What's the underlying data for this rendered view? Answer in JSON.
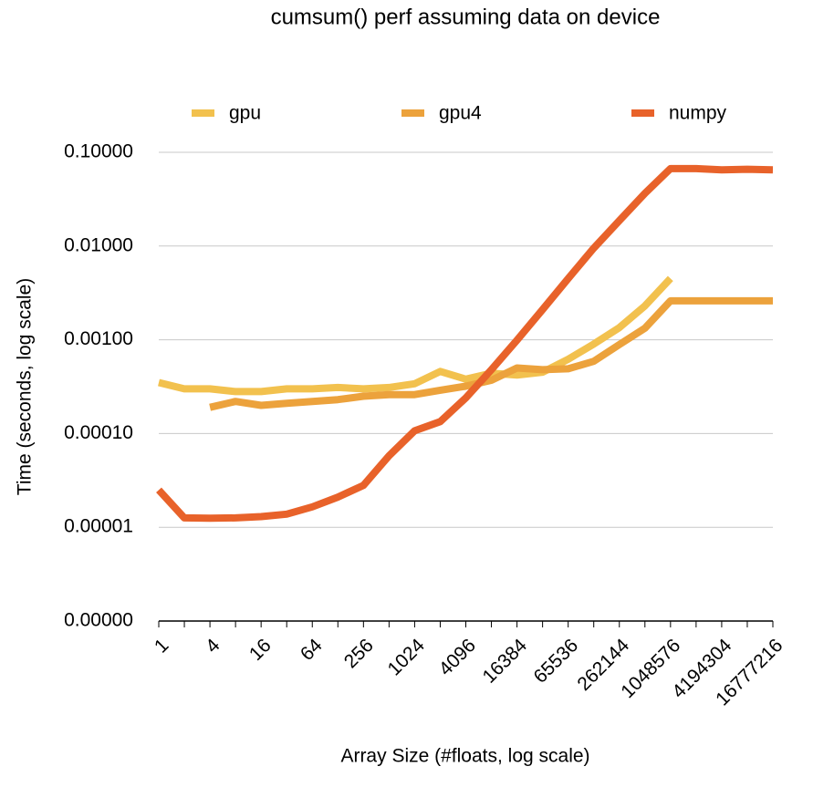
{
  "chart_data": {
    "type": "line",
    "title": "cumsum() perf assuming data on device",
    "x_label": "Array Size (#floats, log scale)",
    "y_label": "Time (seconds, log scale)",
    "log_y": true,
    "grid": true,
    "legend": "top",
    "categories": [
      1,
      null,
      4,
      null,
      16,
      null,
      64,
      null,
      256,
      null,
      1024,
      null,
      4096,
      null,
      16384,
      null,
      65536,
      null,
      262144,
      null,
      1048576,
      null,
      4194304,
      null,
      16777216
    ],
    "ylim": [
      1e-06,
      0.1
    ],
    "yticks": [
      {
        "value": 1e-06,
        "label": "0.00000"
      },
      {
        "value": 1e-05,
        "label": "0.00001"
      },
      {
        "value": 0.0001,
        "label": "0.00010"
      },
      {
        "value": 0.001,
        "label": "0.00100"
      },
      {
        "value": 0.01,
        "label": "0.01000"
      },
      {
        "value": 0.1,
        "label": "0.10000"
      }
    ],
    "series": [
      {
        "name": "gpu",
        "color": "#f2c14e",
        "values": [
          0.00035,
          0.0003,
          0.0003,
          0.00028,
          0.00028,
          0.0003,
          0.0003,
          0.00031,
          0.0003,
          0.00031,
          0.00034,
          0.00046,
          0.00038,
          0.00044,
          0.00042,
          0.00045,
          0.00062,
          0.0009,
          0.00135,
          0.0023,
          0.0045,
          null,
          null,
          null,
          null
        ]
      },
      {
        "name": "gpu4",
        "color": "#eca23c",
        "values": [
          null,
          null,
          0.00019,
          0.00022,
          0.0002,
          0.00021,
          0.00022,
          0.00023,
          0.00025,
          0.00026,
          0.00026,
          0.00029,
          0.00032,
          0.00037,
          0.0005,
          0.00048,
          0.00049,
          0.00059,
          0.00089,
          0.00133,
          0.0026,
          0.0026,
          0.0026,
          0.0026,
          0.0026
        ]
      },
      {
        "name": "numpy",
        "color": "#e8622a",
        "values": [
          2.5e-05,
          1.26e-05,
          1.25e-05,
          1.26e-05,
          1.3e-05,
          1.38e-05,
          1.65e-05,
          2.1e-05,
          2.8e-05,
          5.8e-05,
          0.000107,
          0.000134,
          0.00024,
          0.00048,
          0.00099,
          0.0021,
          0.0045,
          0.0095,
          0.0187,
          0.0365,
          0.067,
          0.067,
          0.065,
          0.066,
          0.065
        ]
      }
    ]
  }
}
